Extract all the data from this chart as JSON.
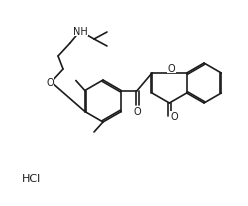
{
  "bg": "#ffffff",
  "lc": "#1c1c1c",
  "lw": 1.2,
  "fs": 6.5,
  "dpi": 100,
  "figsize": [
    2.48,
    2.07
  ],
  "xlim": [
    0,
    248
  ],
  "ylim": [
    0,
    207
  ]
}
